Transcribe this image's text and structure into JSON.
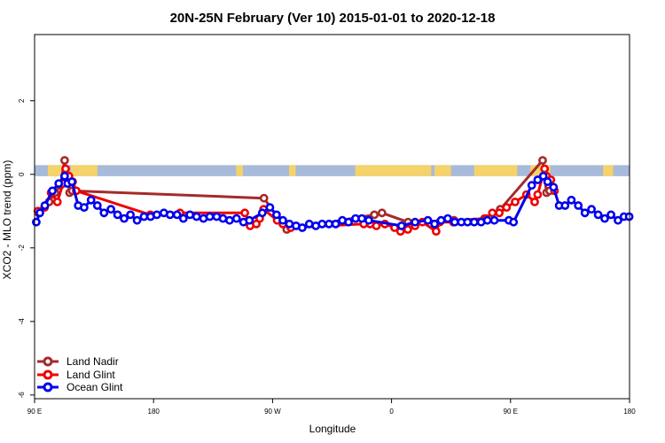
{
  "chart_data": {
    "type": "line",
    "title": "20N-25N February (Ver 10)   2015-01-01 to 2020-12-18",
    "xlabel": "Longitude",
    "ylabel": "XCO2 - MLO trend (ppm)",
    "xlim": [
      0,
      180
    ],
    "ylim": [
      -6.1,
      3.8
    ],
    "x_ticks": [
      {
        "value": 0,
        "label": "90 E"
      },
      {
        "value": 36,
        "label": "180"
      },
      {
        "value": 72,
        "label": "90 W"
      },
      {
        "value": 108,
        "label": "0"
      },
      {
        "value": 144,
        "label": "90 E"
      },
      {
        "value": 180,
        "label": "180"
      }
    ],
    "y_ticks": [
      {
        "value": 2,
        "label": "2"
      },
      {
        "value": 0,
        "label": "0"
      },
      {
        "value": -2,
        "label": "-2"
      },
      {
        "value": -4,
        "label": "-4"
      },
      {
        "value": -6,
        "label": "-6"
      }
    ],
    "grid": false,
    "legend_position": "bottom-left",
    "land_band": {
      "y_range": [
        -0.05,
        0.25
      ],
      "ocean_color": "#a7bad9",
      "land_color": "#f5d36a"
    },
    "series": [
      {
        "name": "Land Nadir",
        "color": "#a52a2a",
        "points": [
          [
            1.2,
            -1.05
          ],
          [
            4.4,
            -0.75
          ],
          [
            6.2,
            -0.5
          ],
          [
            7.8,
            -0.3
          ],
          [
            9.1,
            0.38
          ],
          [
            10.6,
            -0.5
          ],
          [
            11.4,
            -0.45
          ],
          [
            69.4,
            -0.65
          ],
          [
            76.3,
            -1.5
          ],
          [
            102.8,
            -1.1
          ],
          [
            105.1,
            -1.05
          ],
          [
            113.0,
            -1.3
          ],
          [
            126.9,
            -1.25
          ],
          [
            136.1,
            -1.2
          ],
          [
            140.9,
            -0.95
          ],
          [
            153.7,
            0.38
          ],
          [
            154.9,
            -0.5
          ],
          [
            155.8,
            -0.45
          ]
        ]
      },
      {
        "name": "Land Glint",
        "color": "#ee0000",
        "points": [
          [
            1.0,
            -1.0
          ],
          [
            3.0,
            -0.9
          ],
          [
            5.0,
            -0.5
          ],
          [
            6.9,
            -0.75
          ],
          [
            8.6,
            -0.25
          ],
          [
            9.4,
            0.15
          ],
          [
            10.4,
            -0.05
          ],
          [
            11.5,
            -0.2
          ],
          [
            12.6,
            -0.45
          ],
          [
            35.0,
            -1.1
          ],
          [
            44.0,
            -1.05
          ],
          [
            63.6,
            -1.05
          ],
          [
            65.2,
            -1.4
          ],
          [
            67.1,
            -1.35
          ],
          [
            68.1,
            -1.2
          ],
          [
            69.3,
            -0.95
          ],
          [
            73.4,
            -1.25
          ],
          [
            75.1,
            -1.35
          ],
          [
            77.5,
            -1.45
          ],
          [
            99.6,
            -1.35
          ],
          [
            101.5,
            -1.35
          ],
          [
            103.4,
            -1.4
          ],
          [
            106.0,
            -1.35
          ],
          [
            108.9,
            -1.45
          ],
          [
            110.7,
            -1.55
          ],
          [
            112.9,
            -1.5
          ],
          [
            115.1,
            -1.4
          ],
          [
            117.3,
            -1.3
          ],
          [
            121.5,
            -1.55
          ],
          [
            122.6,
            -1.3
          ],
          [
            126.7,
            -1.3
          ],
          [
            136.6,
            -1.2
          ],
          [
            138.5,
            -1.05
          ],
          [
            140.6,
            -1.05
          ],
          [
            142.8,
            -0.9
          ],
          [
            145.4,
            -0.75
          ],
          [
            148.8,
            -0.55
          ],
          [
            151.3,
            -0.75
          ],
          [
            152.2,
            -0.55
          ],
          [
            154.3,
            0.15
          ],
          [
            154.9,
            -0.05
          ],
          [
            156.2,
            -0.15
          ],
          [
            157.3,
            -0.45
          ]
        ]
      },
      {
        "name": "Ocean Glint",
        "color": "#0000ee",
        "points": [
          [
            0.5,
            -1.3
          ],
          [
            1.6,
            -1.05
          ],
          [
            3.1,
            -0.85
          ],
          [
            5.4,
            -0.45
          ],
          [
            7.3,
            -0.25
          ],
          [
            9.1,
            -0.05
          ],
          [
            10.0,
            -0.25
          ],
          [
            11.3,
            -0.2
          ],
          [
            13.2,
            -0.85
          ],
          [
            15.0,
            -0.9
          ],
          [
            17.1,
            -0.7
          ],
          [
            19.0,
            -0.85
          ],
          [
            21.0,
            -1.05
          ],
          [
            23.1,
            -0.95
          ],
          [
            25.1,
            -1.1
          ],
          [
            27.1,
            -1.2
          ],
          [
            29.0,
            -1.1
          ],
          [
            31.0,
            -1.25
          ],
          [
            33.1,
            -1.15
          ],
          [
            35.1,
            -1.15
          ],
          [
            37.0,
            -1.1
          ],
          [
            39.1,
            -1.05
          ],
          [
            41.0,
            -1.1
          ],
          [
            43.1,
            -1.1
          ],
          [
            45.0,
            -1.2
          ],
          [
            47.0,
            -1.1
          ],
          [
            49.0,
            -1.15
          ],
          [
            51.1,
            -1.2
          ],
          [
            53.0,
            -1.15
          ],
          [
            55.1,
            -1.15
          ],
          [
            57.0,
            -1.2
          ],
          [
            59.0,
            -1.25
          ],
          [
            61.1,
            -1.2
          ],
          [
            63.2,
            -1.3
          ],
          [
            65.0,
            -1.25
          ],
          [
            68.9,
            -1.05
          ],
          [
            71.2,
            -0.9
          ],
          [
            73.2,
            -1.1
          ],
          [
            75.1,
            -1.25
          ],
          [
            77.1,
            -1.35
          ],
          [
            79.1,
            -1.4
          ],
          [
            81.0,
            -1.45
          ],
          [
            83.1,
            -1.35
          ],
          [
            85.1,
            -1.4
          ],
          [
            87.0,
            -1.35
          ],
          [
            89.1,
            -1.35
          ],
          [
            91.1,
            -1.35
          ],
          [
            93.1,
            -1.25
          ],
          [
            95.0,
            -1.3
          ],
          [
            97.1,
            -1.2
          ],
          [
            99.0,
            -1.2
          ],
          [
            101.1,
            -1.25
          ],
          [
            111.0,
            -1.4
          ],
          [
            115.1,
            -1.3
          ],
          [
            119.0,
            -1.25
          ],
          [
            121.0,
            -1.35
          ],
          [
            123.0,
            -1.25
          ],
          [
            125.0,
            -1.2
          ],
          [
            127.1,
            -1.3
          ],
          [
            129.1,
            -1.3
          ],
          [
            131.0,
            -1.3
          ],
          [
            133.0,
            -1.3
          ],
          [
            135.1,
            -1.3
          ],
          [
            137.0,
            -1.25
          ],
          [
            139.1,
            -1.25
          ],
          [
            143.5,
            -1.25
          ],
          [
            144.9,
            -1.3
          ],
          [
            150.4,
            -0.3
          ],
          [
            152.2,
            -0.15
          ],
          [
            153.9,
            -0.05
          ],
          [
            155.2,
            -0.2
          ],
          [
            157.0,
            -0.35
          ],
          [
            158.7,
            -0.85
          ],
          [
            160.5,
            -0.85
          ],
          [
            162.4,
            -0.7
          ],
          [
            164.5,
            -0.85
          ],
          [
            166.5,
            -1.05
          ],
          [
            168.5,
            -0.95
          ],
          [
            170.5,
            -1.1
          ],
          [
            172.5,
            -1.2
          ],
          [
            174.4,
            -1.1
          ],
          [
            176.5,
            -1.25
          ],
          [
            178.3,
            -1.15
          ],
          [
            179.9,
            -1.15
          ]
        ]
      }
    ]
  }
}
